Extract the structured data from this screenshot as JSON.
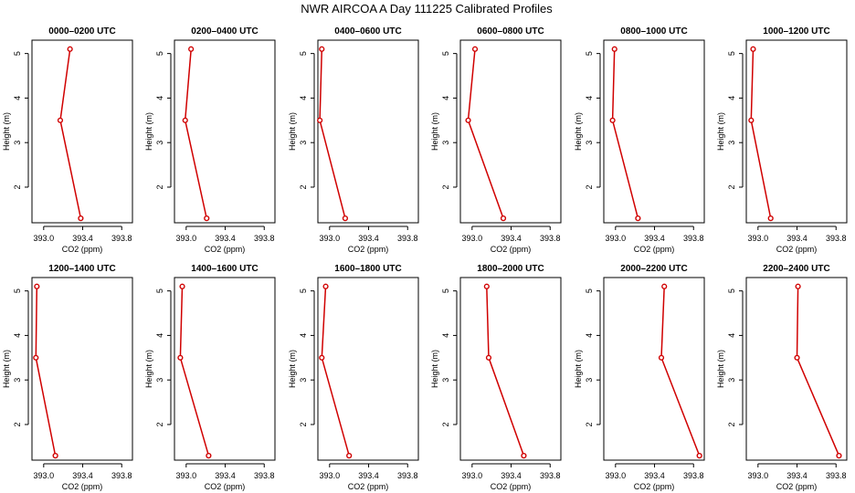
{
  "title": "NWR AIRCOA A  Day 111225  Calibrated Profiles",
  "chart_data": {
    "type": "line",
    "title": "NWR AIRCOA A  Day 111225  Calibrated Profiles",
    "xlabel": "CO2 (ppm)",
    "ylabel": "Height (m)",
    "xlim": [
      392.88,
      393.91
    ],
    "ylim": [
      1.2,
      5.3
    ],
    "xticks": [
      "393.0",
      "393.4",
      "393.8"
    ],
    "xtick_values": [
      393.0,
      393.4,
      393.8
    ],
    "yticks": [
      "2",
      "3",
      "4",
      "5"
    ],
    "ytick_values": [
      2,
      3,
      4,
      5
    ],
    "color": "#d00000",
    "panels": [
      {
        "title": "0000–0200 UTC",
        "x": [
          393.27,
          393.17,
          393.38
        ],
        "y": [
          5.1,
          3.5,
          1.3
        ]
      },
      {
        "title": "0200–0400 UTC",
        "x": [
          393.05,
          392.99,
          393.21
        ],
        "y": [
          5.1,
          3.5,
          1.3
        ]
      },
      {
        "title": "0400–0600 UTC",
        "x": [
          392.92,
          392.9,
          393.16
        ],
        "y": [
          5.1,
          3.5,
          1.3
        ]
      },
      {
        "title": "0600–0800 UTC",
        "x": [
          393.03,
          392.96,
          393.32
        ],
        "y": [
          5.1,
          3.5,
          1.3
        ]
      },
      {
        "title": "0800–1000 UTC",
        "x": [
          392.99,
          392.97,
          393.23
        ],
        "y": [
          5.1,
          3.5,
          1.3
        ]
      },
      {
        "title": "1000–1200 UTC",
        "x": [
          392.95,
          392.93,
          393.13
        ],
        "y": [
          5.1,
          3.5,
          1.3
        ]
      },
      {
        "title": "1200–1400 UTC",
        "x": [
          392.93,
          392.92,
          393.12
        ],
        "y": [
          5.1,
          3.5,
          1.3
        ]
      },
      {
        "title": "1400–1600 UTC",
        "x": [
          392.96,
          392.94,
          393.23
        ],
        "y": [
          5.1,
          3.5,
          1.3
        ]
      },
      {
        "title": "1600–1800 UTC",
        "x": [
          392.96,
          392.92,
          393.2
        ],
        "y": [
          5.1,
          3.5,
          1.3
        ]
      },
      {
        "title": "1800–2000 UTC",
        "x": [
          393.15,
          393.17,
          393.53
        ],
        "y": [
          5.1,
          3.5,
          1.3
        ]
      },
      {
        "title": "2000–2200 UTC",
        "x": [
          393.5,
          393.47,
          393.86
        ],
        "y": [
          5.1,
          3.5,
          1.3
        ]
      },
      {
        "title": "2200–2400 UTC",
        "x": [
          393.41,
          393.4,
          393.83
        ],
        "y": [
          5.1,
          3.5,
          1.3
        ]
      }
    ]
  }
}
